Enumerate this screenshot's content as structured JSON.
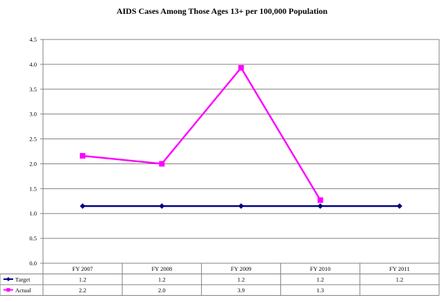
{
  "chart_data": {
    "type": "line",
    "title": "AIDS Cases Among Those Ages 13+ per 100,000 Population",
    "categories": [
      "FY 2007",
      "FY 2008",
      "FY 2009",
      "FY 2010",
      "FY 2011"
    ],
    "ylim": [
      0,
      4.5
    ],
    "yticks": [
      "0.0",
      "0.5",
      "1.0",
      "1.5",
      "2.0",
      "2.5",
      "3.0",
      "3.5",
      "4.0",
      "4.5"
    ],
    "grid": true,
    "legend": "data-table-left",
    "series": [
      {
        "name": "Target",
        "color": "#000080",
        "marker": "diamond",
        "values": [
          1.15,
          1.15,
          1.15,
          1.15,
          1.15
        ],
        "labels": [
          "1.2",
          "1.2",
          "1.2",
          "1.2",
          "1.2"
        ]
      },
      {
        "name": "Actual",
        "color": "#ff00ff",
        "marker": "square",
        "values": [
          2.16,
          2.0,
          3.93,
          1.27,
          null
        ],
        "labels": [
          "2.2",
          "2.0",
          "3.9",
          "1.3",
          ""
        ]
      }
    ]
  }
}
